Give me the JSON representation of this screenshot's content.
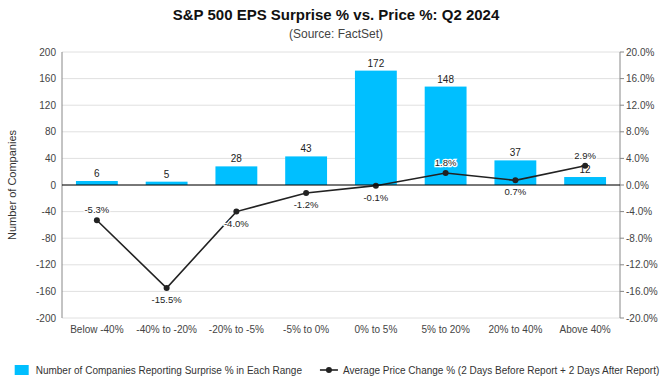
{
  "chart_data": {
    "type": "bar",
    "title": "S&P 500 EPS Surprise % vs. Price %: Q2 2024",
    "subtitle": "(Source: FactSet)",
    "categories": [
      "Below -40%",
      "-40% to -20%",
      "-20% to -5%",
      "-5% to 0%",
      "0% to 5%",
      "5% to 20%",
      "20% to 40%",
      "Above 40%"
    ],
    "series": [
      {
        "name": "Number of Companies Reporting Surprise % in Each Range",
        "type": "bar",
        "color": "#00BFFF",
        "values": [
          6,
          5,
          28,
          43,
          172,
          148,
          37,
          12
        ],
        "data_labels": true
      },
      {
        "name": "Average Price Change % (2 Days Before Report + 2 Days After Report)",
        "type": "line",
        "axis": "y2",
        "color": "#222222",
        "marker": "circle",
        "line_style": "solid",
        "values": [
          -5.3,
          -15.5,
          -4.0,
          -1.2,
          -0.1,
          1.8,
          0.7,
          2.9
        ],
        "value_labels": [
          "-5.3%",
          "-15.5%",
          "-4.0%",
          "-1.2%",
          "-0.1%",
          "1.8%",
          "0.7%",
          "2.9%"
        ],
        "data_labels": true
      }
    ],
    "ylabel": "Number of Companies",
    "ylim": [
      -200,
      200
    ],
    "yticks": [
      -200,
      -160,
      -120,
      -80,
      -40,
      0,
      40,
      80,
      120,
      160,
      200
    ],
    "y2lim": [
      -20.0,
      20.0
    ],
    "y2ticks": [
      {
        "value": -20.0,
        "label": "-20.0%"
      },
      {
        "value": -16.0,
        "label": "-16.0%"
      },
      {
        "value": -12.0,
        "label": "-12.0%"
      },
      {
        "value": -8.0,
        "label": "-8.0%"
      },
      {
        "value": -4.0,
        "label": "-4.0%"
      },
      {
        "value": 0.0,
        "label": "0.0%"
      },
      {
        "value": 4.0,
        "label": "4.0%"
      },
      {
        "value": 8.0,
        "label": "8.0%"
      },
      {
        "value": 12.0,
        "label": "12.0%"
      },
      {
        "value": 16.0,
        "label": "16.0%"
      },
      {
        "value": 20.0,
        "label": "20.0%"
      }
    ],
    "grid": true,
    "legend": "bottom"
  }
}
